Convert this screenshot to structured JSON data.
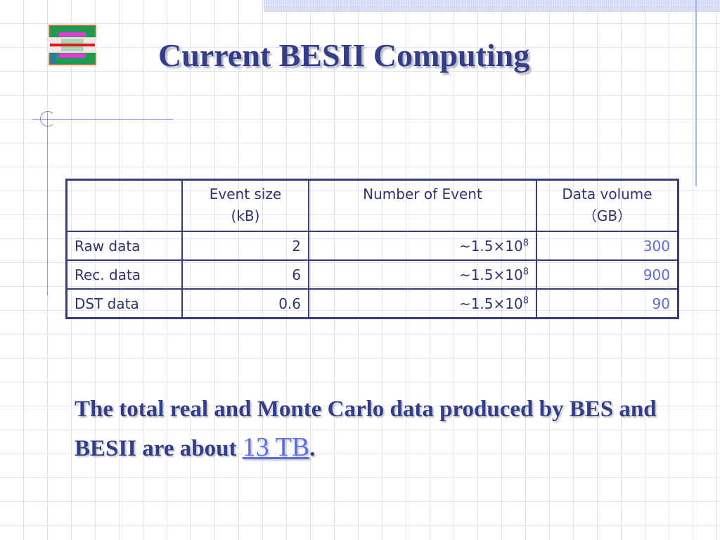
{
  "title": "Current BESII Computing",
  "table": {
    "headers": [
      {
        "line1": "",
        "line2": ""
      },
      {
        "line1": "Event size",
        "line2": "(kB)"
      },
      {
        "line1": "Number of Event",
        "line2": ""
      },
      {
        "line1": "Data volume",
        "line2": "（GB）"
      }
    ],
    "rows": [
      {
        "label": "Raw data",
        "event_size": "2",
        "events_mantissa": "~1.5×10",
        "events_exp": "8",
        "volume": "300"
      },
      {
        "label": "Rec. data",
        "event_size": "6",
        "events_mantissa": "~1.5×10",
        "events_exp": "8",
        "volume": "900"
      },
      {
        "label": "DST data",
        "event_size": "0.6",
        "events_mantissa": "~1.5×10",
        "events_exp": "8",
        "volume": "90"
      }
    ]
  },
  "summary": {
    "text": "The total real and Monte Carlo data produced by BES and BESII are about ",
    "highlight": "13 TB",
    "end": "."
  },
  "colors": {
    "title": "#343e88",
    "table_border": "#353c80",
    "volume": "#5a6ed8",
    "highlight": "#5a6fe0"
  },
  "logo": {
    "icon": "detector-diagram-icon"
  }
}
